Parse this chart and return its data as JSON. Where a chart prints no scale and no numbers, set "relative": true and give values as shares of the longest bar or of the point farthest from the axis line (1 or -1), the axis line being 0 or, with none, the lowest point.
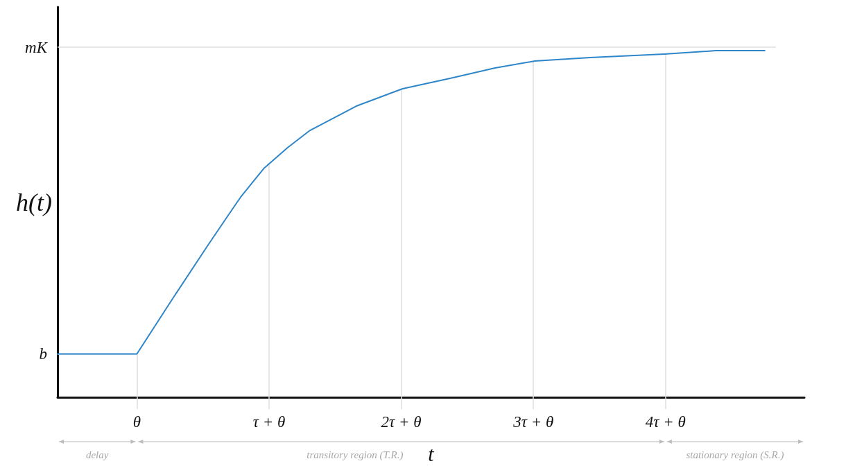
{
  "chart_data": {
    "type": "line",
    "xlabel": "t",
    "ylabel": "h(t)",
    "relative": true,
    "x": [
      -0.6,
      0,
      0.28,
      0.54,
      0.7,
      0.79,
      0.96,
      1.14,
      1.31,
      1.66,
      2.01,
      2.37,
      2.71,
      3.01,
      3.43,
      3.99,
      4.38,
      4.75
    ],
    "values": [
      0.125,
      0.125,
      0.29,
      0.44,
      0.53,
      0.58,
      0.66,
      0.72,
      0.77,
      0.84,
      0.89,
      0.92,
      0.95,
      0.97,
      0.98,
      0.99,
      1,
      1
    ],
    "color": "#2e86c9",
    "xlim": [
      -0.6,
      5.05
    ],
    "xticks": [
      {
        "value": 0,
        "label": "θ"
      },
      {
        "value": 1,
        "label": "τ + θ"
      },
      {
        "value": 2,
        "label": "2τ + θ"
      },
      {
        "value": 3,
        "label": "3τ + θ"
      },
      {
        "value": 4,
        "label": "4τ + θ"
      }
    ],
    "ref_lines": [
      {
        "axis": "y",
        "value": 0.125,
        "label": "b"
      },
      {
        "axis": "y",
        "value": 1.01,
        "label": "mK"
      },
      {
        "axis": "x",
        "value": 0
      },
      {
        "axis": "x",
        "value": 1
      },
      {
        "axis": "x",
        "value": 2
      },
      {
        "axis": "x",
        "value": 3
      },
      {
        "axis": "x",
        "value": 4
      }
    ],
    "marker": "none",
    "line_style": "solid",
    "annotations": [
      "delay",
      "transitory region (T.R.)",
      "stationary region (S.R.)"
    ]
  }
}
